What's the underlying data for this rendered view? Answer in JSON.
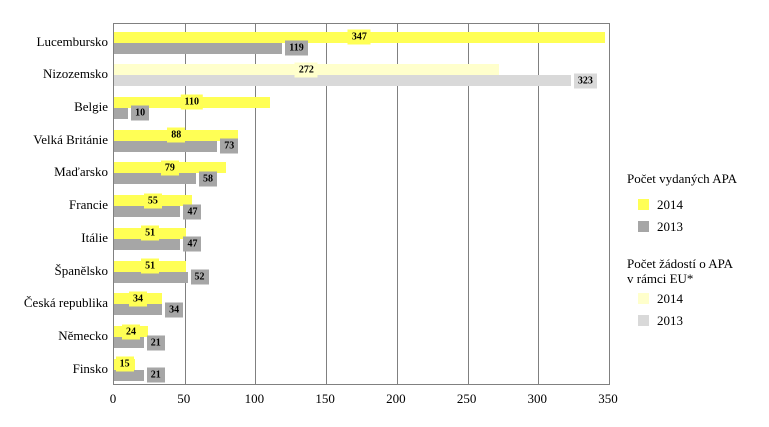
{
  "chart_data": {
    "type": "bar",
    "orientation": "horizontal",
    "title": "",
    "categories": [
      "Lucembursko",
      "Nizozemsko",
      "Belgie",
      "Velká Británie",
      "Maďarsko",
      "Francie",
      "Itálie",
      "Španělsko",
      "Česká republika",
      "Německo",
      "Finsko"
    ],
    "series": [
      {
        "name": "Počet vydaných APA 2014",
        "color": "#FFFF55",
        "values": [
          347,
          null,
          110,
          88,
          79,
          55,
          51,
          51,
          34,
          24,
          15
        ]
      },
      {
        "name": "Počet vydaných APA 2013",
        "color": "#A6A6A6",
        "values": [
          119,
          null,
          10,
          73,
          58,
          47,
          47,
          52,
          34,
          21,
          21
        ]
      },
      {
        "name": "Počet žádostí o APA v rámci EU* 2014",
        "color": "#FFFFCC",
        "values": [
          null,
          272,
          null,
          null,
          null,
          null,
          null,
          null,
          null,
          null,
          null
        ]
      },
      {
        "name": "Počet žádostí o APA v rámci EU* 2013",
        "color": "#D9D9D9",
        "values": [
          null,
          323,
          null,
          null,
          null,
          null,
          null,
          null,
          null,
          null,
          null
        ]
      }
    ],
    "xlim": [
      0,
      350
    ],
    "x_ticks": [
      0,
      50,
      100,
      150,
      200,
      250,
      300,
      350
    ],
    "grid": "vertical",
    "legend_position": "right"
  },
  "rows": [
    {
      "label": "Lucembursko",
      "v2014": 347,
      "v2013": 119,
      "series": "issued"
    },
    {
      "label": "Nizozemsko",
      "v2014": 272,
      "v2013": 323,
      "series": "applications"
    },
    {
      "label": "Belgie",
      "v2014": 110,
      "v2013": 10,
      "series": "issued"
    },
    {
      "label": "Velká Británie",
      "v2014": 88,
      "v2013": 73,
      "series": "issued"
    },
    {
      "label": "Maďarsko",
      "v2014": 79,
      "v2013": 58,
      "series": "issued"
    },
    {
      "label": "Francie",
      "v2014": 55,
      "v2013": 47,
      "series": "issued"
    },
    {
      "label": "Itálie",
      "v2014": 51,
      "v2013": 47,
      "series": "issued"
    },
    {
      "label": "Španělsko",
      "v2014": 51,
      "v2013": 52,
      "series": "issued"
    },
    {
      "label": "Česká republika",
      "v2014": 34,
      "v2013": 34,
      "series": "issued"
    },
    {
      "label": "Německo",
      "v2014": 24,
      "v2013": 21,
      "series": "issued"
    },
    {
      "label": "Finsko",
      "v2014": 15,
      "v2013": 21,
      "series": "issued"
    }
  ],
  "colors": {
    "issued_2014": "#FFFF55",
    "issued_2013": "#A6A6A6",
    "applications_2014": "#FFFFCC",
    "applications_2013": "#D9D9D9",
    "gridline": "#808080",
    "text": "#000000"
  },
  "axis": {
    "tick_values": [
      0,
      50,
      100,
      150,
      200,
      250,
      300,
      350
    ],
    "tick_labels": [
      "0",
      "50",
      "100",
      "150",
      "200",
      "250",
      "300",
      "350"
    ],
    "max": 350
  },
  "legend": {
    "group1_title": "Počet vydaných APA",
    "group1_items": [
      {
        "label": "2014",
        "color": "#FFFF55"
      },
      {
        "label": "2013",
        "color": "#A6A6A6"
      }
    ],
    "group2_title_line1": "Počet žádostí o APA",
    "group2_title_line2": "v rámci EU*",
    "group2_items": [
      {
        "label": "2014",
        "color": "#FFFFCC"
      },
      {
        "label": "2013",
        "color": "#D9D9D9"
      }
    ]
  }
}
